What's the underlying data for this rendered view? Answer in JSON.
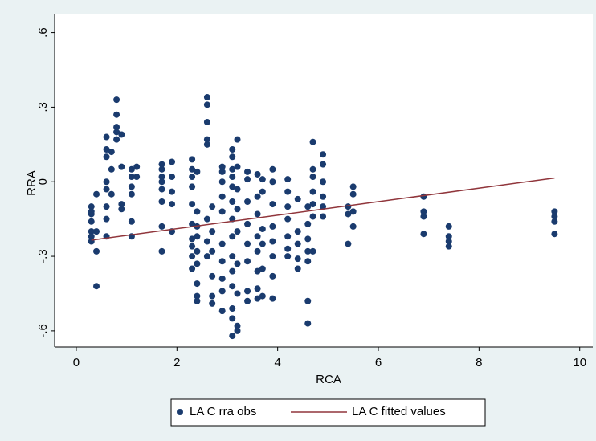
{
  "chart_data": {
    "type": "scatter",
    "x_label": "RCA",
    "y_label": "RRA",
    "xlim": [
      -0.43,
      10.26
    ],
    "ylim": [
      -0.665,
      0.673
    ],
    "xticks": [
      0,
      2,
      4,
      6,
      8,
      10
    ],
    "yticks": [
      {
        "value": -0.6,
        "label": "-.6"
      },
      {
        "value": -0.3,
        "label": "-.3"
      },
      0,
      {
        "value": 0.3,
        "label": ".3"
      },
      {
        "value": 0.6,
        "label": ".6"
      }
    ],
    "series": [
      {
        "name": "LA C rra obs",
        "type": "scatter",
        "color": "#1a3b6e",
        "x": [
          0.3,
          0.3,
          0.3,
          0.3,
          0.3,
          0.3,
          0.3,
          0.4,
          0.4,
          0.4,
          0.4,
          0.6,
          0.6,
          0.6,
          0.6,
          0.6,
          0.6,
          0.6,
          0.6,
          0.7,
          0.7,
          0.7,
          0.8,
          0.8,
          0.8,
          0.8,
          0.8,
          0.9,
          0.9,
          0.9,
          0.9,
          1.1,
          1.1,
          1.1,
          1.1,
          1.1,
          1.1,
          1.2,
          1.2,
          1.7,
          1.7,
          1.7,
          1.7,
          1.7,
          1.7,
          1.7,
          1.7,
          1.9,
          1.9,
          1.9,
          1.9,
          1.9,
          2.3,
          2.3,
          2.3,
          2.3,
          2.3,
          2.3,
          2.3,
          2.3,
          2.3,
          2.3,
          2.4,
          2.4,
          2.4,
          2.4,
          2.4,
          2.4,
          2.4,
          2.4,
          2.4,
          2.6,
          2.6,
          2.6,
          2.6,
          2.6,
          2.6,
          2.6,
          2.6,
          2.7,
          2.7,
          2.7,
          2.7,
          2.7,
          2.7,
          2.9,
          2.9,
          2.9,
          2.9,
          2.9,
          2.9,
          2.9,
          2.9,
          2.9,
          2.9,
          3.1,
          3.1,
          3.1,
          3.1,
          3.1,
          3.1,
          3.1,
          3.1,
          3.1,
          3.1,
          3.1,
          3.1,
          3.1,
          3.1,
          3.2,
          3.2,
          3.2,
          3.2,
          3.2,
          3.2,
          3.2,
          3.2,
          3.2,
          3.4,
          3.4,
          3.4,
          3.4,
          3.4,
          3.4,
          3.4,
          3.4,
          3.6,
          3.6,
          3.6,
          3.6,
          3.6,
          3.6,
          3.6,
          3.6,
          3.7,
          3.7,
          3.7,
          3.7,
          3.7,
          3.7,
          3.9,
          3.9,
          3.9,
          3.9,
          3.9,
          3.9,
          3.9,
          3.9,
          4.2,
          4.2,
          4.2,
          4.2,
          4.2,
          4.2,
          4.2,
          4.4,
          4.4,
          4.4,
          4.4,
          4.4,
          4.6,
          4.6,
          4.6,
          4.6,
          4.6,
          4.6,
          4.6,
          4.7,
          4.7,
          4.7,
          4.7,
          4.7,
          4.7,
          4.7,
          4.9,
          4.9,
          4.9,
          4.9,
          4.9,
          4.9,
          5.4,
          5.4,
          5.4,
          5.5,
          5.5,
          5.5,
          5.5,
          6.9,
          6.9,
          6.9,
          6.9,
          7.4,
          7.4,
          7.4,
          7.4,
          9.5,
          9.5,
          9.5,
          9.5
        ],
        "values": [
          -0.1,
          -0.13,
          -0.16,
          -0.2,
          -0.22,
          -0.24,
          -0.12,
          -0.05,
          -0.2,
          -0.28,
          -0.42,
          0.18,
          0.13,
          0.1,
          0,
          -0.03,
          -0.1,
          -0.15,
          -0.22,
          0.12,
          0.05,
          -0.05,
          0.33,
          0.27,
          0.22,
          0.17,
          0.2,
          0.19,
          0.06,
          -0.09,
          -0.11,
          0.05,
          0.02,
          -0.02,
          -0.05,
          -0.16,
          -0.22,
          0.06,
          0.02,
          0.07,
          0.05,
          0.02,
          0,
          -0.03,
          -0.08,
          -0.18,
          -0.28,
          0.08,
          0.02,
          -0.04,
          -0.09,
          -0.2,
          0.09,
          0.05,
          0.02,
          -0.02,
          -0.09,
          -0.17,
          -0.23,
          -0.26,
          -0.3,
          -0.35,
          0.04,
          -0.12,
          -0.18,
          -0.22,
          -0.28,
          -0.33,
          -0.41,
          -0.46,
          -0.48,
          0.34,
          0.31,
          0.24,
          0.17,
          0.15,
          -0.15,
          -0.24,
          -0.3,
          -0.1,
          -0.2,
          -0.28,
          -0.38,
          -0.46,
          -0.49,
          0.06,
          0.04,
          0,
          -0.06,
          -0.12,
          -0.25,
          -0.32,
          -0.39,
          -0.44,
          -0.52,
          0.13,
          0.1,
          0.05,
          0.02,
          -0.02,
          -0.08,
          -0.15,
          -0.22,
          -0.3,
          -0.36,
          -0.42,
          -0.51,
          -0.55,
          -0.62,
          0.17,
          0.06,
          -0.03,
          -0.11,
          -0.2,
          -0.33,
          -0.45,
          -0.58,
          -0.6,
          0.04,
          0.01,
          -0.08,
          -0.17,
          -0.25,
          -0.32,
          -0.44,
          -0.48,
          0.03,
          -0.06,
          -0.13,
          -0.22,
          -0.28,
          -0.36,
          -0.43,
          -0.47,
          0.01,
          -0.04,
          -0.19,
          -0.25,
          -0.35,
          -0.46,
          0.05,
          0,
          -0.09,
          -0.18,
          -0.24,
          -0.3,
          -0.38,
          -0.47,
          0.01,
          -0.04,
          -0.1,
          -0.15,
          -0.22,
          -0.27,
          -0.3,
          -0.07,
          -0.2,
          -0.25,
          -0.31,
          -0.35,
          -0.1,
          -0.17,
          -0.23,
          -0.28,
          -0.32,
          -0.48,
          -0.57,
          0.16,
          0.05,
          0.02,
          -0.04,
          -0.09,
          -0.14,
          -0.28,
          0.11,
          0.07,
          0,
          -0.06,
          -0.1,
          -0.14,
          -0.1,
          -0.13,
          -0.25,
          -0.02,
          -0.05,
          -0.12,
          -0.18,
          -0.06,
          -0.12,
          -0.14,
          -0.21,
          -0.18,
          -0.22,
          -0.24,
          -0.26,
          -0.12,
          -0.14,
          -0.16,
          -0.21
        ]
      },
      {
        "name": "LA C fitted values",
        "type": "line",
        "color": "#90353b",
        "x": [
          0.3,
          9.5
        ],
        "values": [
          -0.235,
          0.015
        ]
      }
    ]
  }
}
